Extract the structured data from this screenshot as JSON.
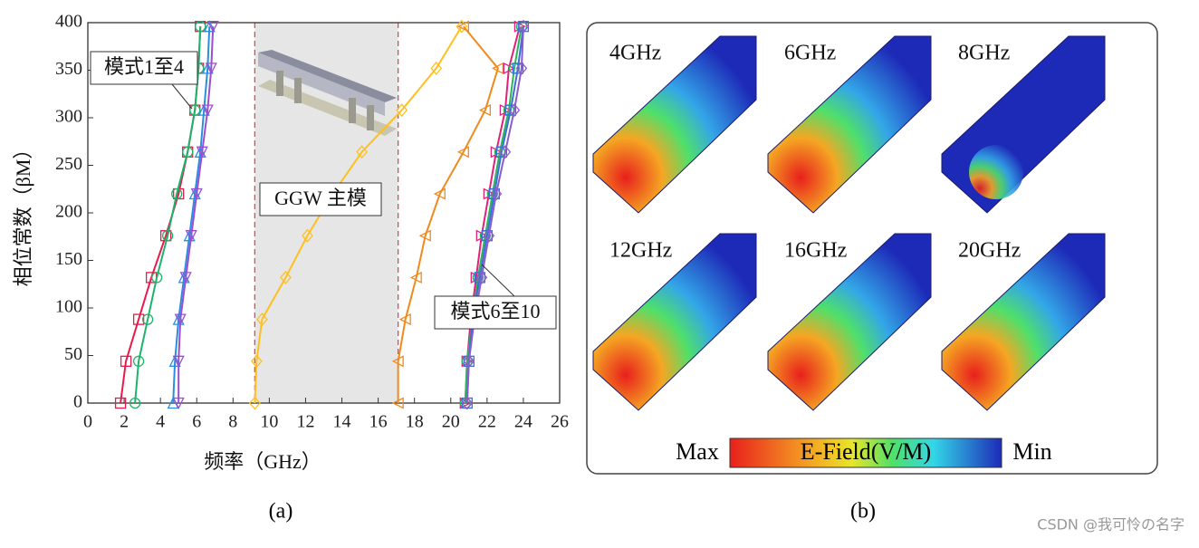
{
  "chart_data": {
    "type": "line",
    "xlabel": "频率（GHz）",
    "ylabel": "相位常数（βΜ）",
    "xlim": [
      0,
      26
    ],
    "xticks": [
      0,
      2,
      4,
      6,
      8,
      10,
      12,
      14,
      16,
      18,
      20,
      22,
      24,
      26
    ],
    "ylim": [
      0,
      400
    ],
    "yticks": [
      0,
      50,
      100,
      150,
      200,
      250,
      300,
      350,
      400
    ],
    "shaded_band": [
      9.2,
      17.1
    ],
    "annotations": [
      "模式1至4",
      "GGW 主模",
      "模式6至10"
    ],
    "series": [
      {
        "color": "#e8194b",
        "marker": "square",
        "x": [
          1.8,
          2.1,
          2.8,
          3.5,
          4.3,
          5.0,
          5.5,
          5.9,
          6.1,
          6.2
        ],
        "values": [
          0,
          44,
          88,
          132,
          176,
          220,
          264,
          308,
          352,
          396
        ]
      },
      {
        "color": "#1db36b",
        "marker": "circle",
        "x": [
          2.6,
          2.8,
          3.3,
          3.8,
          4.4,
          4.9,
          5.5,
          5.9,
          6.1,
          6.2
        ],
        "values": [
          0,
          44,
          88,
          132,
          176,
          220,
          264,
          308,
          352,
          396
        ]
      },
      {
        "color": "#2a8ee0",
        "marker": "triangle-up",
        "x": [
          4.7,
          4.8,
          5.0,
          5.3,
          5.6,
          5.9,
          6.2,
          6.4,
          6.6,
          6.7
        ],
        "values": [
          0,
          44,
          88,
          132,
          176,
          220,
          264,
          308,
          352,
          396
        ]
      },
      {
        "color": "#9b4fd0",
        "marker": "triangle-down",
        "x": [
          5.0,
          5.0,
          5.1,
          5.4,
          5.7,
          6.0,
          6.3,
          6.6,
          6.8,
          6.9
        ],
        "values": [
          0,
          44,
          88,
          132,
          176,
          220,
          264,
          308,
          352,
          396
        ]
      },
      {
        "color": "#ffbf1f",
        "marker": "diamond",
        "x": [
          9.2,
          9.3,
          9.6,
          10.9,
          12.1,
          13.5,
          15.1,
          17.3,
          19.2,
          20.6
        ],
        "values": [
          0,
          44,
          88,
          132,
          176,
          220,
          264,
          308,
          352,
          396
        ]
      },
      {
        "color": "#f08a1e",
        "marker": "triangle-left",
        "x": [
          17.1,
          17.1,
          17.5,
          18.1,
          18.6,
          19.4,
          20.7,
          21.9,
          22.6,
          20.7
        ],
        "values": [
          0,
          44,
          88,
          132,
          176,
          220,
          264,
          308,
          352,
          396
        ]
      },
      {
        "color": "#e0207a",
        "marker": "triangle-right",
        "x": [
          20.8,
          20.9,
          21.1,
          21.4,
          21.7,
          22.1,
          22.5,
          23.0,
          23.2,
          23.8
        ],
        "values": [
          0,
          44,
          88,
          132,
          176,
          220,
          264,
          308,
          352,
          396
        ]
      },
      {
        "color": "#2db35c",
        "marker": "circle",
        "x": [
          20.8,
          20.9,
          21.2,
          21.5,
          21.9,
          22.3,
          22.7,
          23.2,
          23.5,
          23.9
        ],
        "values": [
          0,
          44,
          88,
          132,
          176,
          220,
          264,
          308,
          352,
          396
        ]
      },
      {
        "color": "#3a6fd8",
        "marker": "square",
        "x": [
          20.9,
          21.0,
          21.2,
          21.6,
          22.0,
          22.4,
          22.8,
          23.3,
          23.7,
          24.0
        ],
        "values": [
          0,
          44,
          88,
          132,
          176,
          220,
          264,
          308,
          352,
          396
        ]
      },
      {
        "color": "#8a5cd0",
        "marker": "diamond",
        "x": [
          20.9,
          21.0,
          21.3,
          21.7,
          22.1,
          22.5,
          23.0,
          23.5,
          23.9,
          24.0
        ],
        "values": [
          0,
          44,
          88,
          132,
          176,
          220,
          264,
          308,
          352,
          396
        ]
      }
    ]
  },
  "field_panel": {
    "tiles": [
      "4GHz",
      "6GHz",
      "8GHz",
      "12GHz",
      "16GHz",
      "20GHz"
    ],
    "legend": {
      "max": "Max",
      "title": "E-Field(V/M)",
      "min": "Min"
    }
  },
  "captions": [
    "(a)",
    "(b)"
  ],
  "watermark": "CSDN @我可怜の名字"
}
